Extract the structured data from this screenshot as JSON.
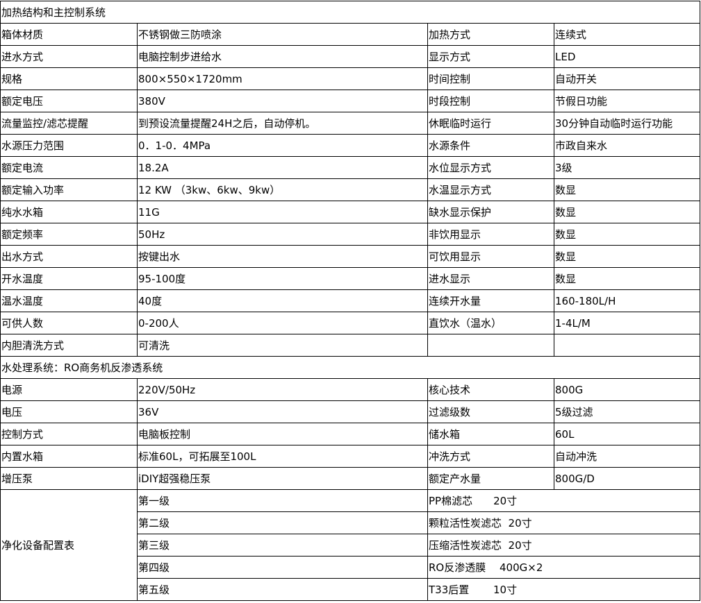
{
  "heating": {
    "title": "加热结构和主控制系统",
    "rows": [
      [
        "箱体材质",
        "不锈钢做三防喷涂",
        "加热方式",
        "连续式"
      ],
      [
        "进水方式",
        "电脑控制步进给水",
        "显示方式",
        "LED"
      ],
      [
        "规格",
        "800×550×1720mm",
        "时间控制",
        "自动开关"
      ],
      [
        "额定电压",
        "380V",
        "时段控制",
        "节假日功能"
      ],
      [
        "流量监控/滤芯提醒",
        "到预设流量提醒24H之后，自动停机。",
        "休眠临时运行",
        "30分钟自动临时运行功能"
      ],
      [
        "水源压力范围",
        "0．1-0．4MPa",
        "水源条件",
        "市政自来水"
      ],
      [
        "额定电流",
        "18.2A",
        "水位显示方式",
        "3级"
      ],
      [
        "额定输入功率",
        "12 KW （3kw、6kw、9kw）",
        "水温显示方式",
        "数显"
      ],
      [
        "纯水水箱",
        "11G",
        "缺水显示保护",
        "数显"
      ],
      [
        "额定频率",
        "50Hz",
        "非饮用显示",
        "数显"
      ],
      [
        "出水方式",
        "按键出水",
        "可饮用显示",
        "数显"
      ],
      [
        "开水温度",
        "95-100度",
        "进水显示",
        "数显"
      ],
      [
        "温水温度",
        "40度",
        "连续开水量",
        "160-180L/H"
      ],
      [
        "可供人数",
        "0-200人",
        "直饮水（温水）",
        "1-4L/M"
      ],
      [
        "内胆清洗方式",
        "可清洗",
        "",
        ""
      ]
    ]
  },
  "water_treatment": {
    "title": "水处理系统：RO商务机反渗透系统",
    "rows": [
      [
        "电源",
        "220V/50Hz",
        "核心技术",
        "800G"
      ],
      [
        "电压",
        "36V",
        "过滤级数",
        "5级过滤"
      ],
      [
        "控制方式",
        "电脑板控制",
        "储水箱",
        "60L"
      ],
      [
        "内置水箱",
        "标准60L，可拓展至100L",
        "冲洗方式",
        "自动冲洗"
      ],
      [
        "增压泵",
        "iDIY超强稳压泵",
        "额定产水量",
        "800G/D"
      ]
    ]
  },
  "purification": {
    "label": "净化设备配置表",
    "rows": [
      [
        "第一级",
        "PP棉滤芯　　20寸"
      ],
      [
        "第二级",
        "颗粒活性炭滤芯  20寸"
      ],
      [
        "第三级",
        "压缩活性炭滤芯  20寸"
      ],
      [
        "第四级",
        "RO反渗透膜　 400G×2"
      ],
      [
        "第五级",
        "T33后置　　 10寸"
      ]
    ]
  }
}
